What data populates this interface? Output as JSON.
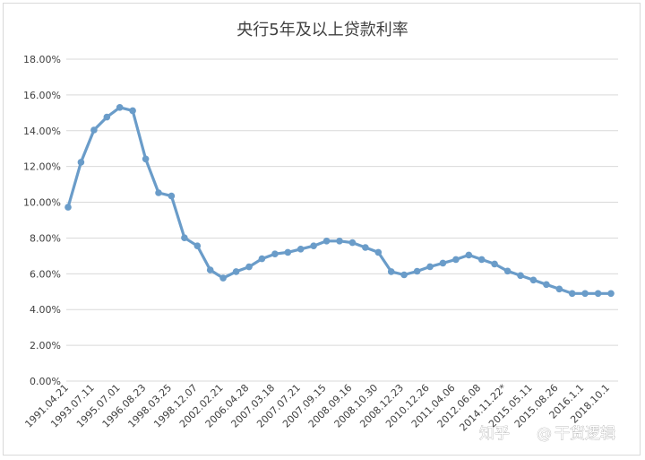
{
  "chart_data": {
    "type": "line",
    "title": "央行5年及以上贷款利率",
    "xlabel": "",
    "ylabel": "",
    "ylim": [
      0,
      18
    ],
    "y_tick_labels": [
      "0.00%",
      "2.00%",
      "4.00%",
      "6.00%",
      "8.00%",
      "10.00%",
      "12.00%",
      "14.00%",
      "16.00%",
      "18.00%"
    ],
    "x_tick_labels": [
      "1991.04.21",
      "1993.07.11",
      "1995.07.01",
      "1996.08.23",
      "1998.03.25",
      "1998.12.07",
      "2002.02.21",
      "2006.04.28",
      "2007.03.18",
      "2007.07.21",
      "2007.09.15",
      "2008.09.16",
      "2008.10.30",
      "2008.12.23",
      "2010.12.26",
      "2011.04.06",
      "2012.06.08",
      "2014.11.22*",
      "2015.05.11",
      "2015.08.26",
      "2016.1.1",
      "2018.10.1"
    ],
    "grid": true,
    "legend": "none",
    "series": [
      {
        "color": "#6a9cc9",
        "values": [
          9.72,
          12.24,
          14.04,
          14.76,
          15.3,
          15.12,
          12.42,
          10.53,
          10.35,
          8.01,
          7.56,
          6.21,
          5.76,
          6.12,
          6.39,
          6.84,
          7.11,
          7.2,
          7.38,
          7.56,
          7.83,
          7.83,
          7.74,
          7.47,
          7.2,
          6.12,
          5.94,
          6.14,
          6.4,
          6.6,
          6.8,
          7.05,
          6.8,
          6.55,
          6.15,
          5.9,
          5.65,
          5.4,
          5.15,
          4.9,
          4.9,
          4.9,
          4.9
        ]
      }
    ]
  },
  "watermark": {
    "zhihu": "知乎",
    "at": "@",
    "handle": "干货逻辑"
  }
}
